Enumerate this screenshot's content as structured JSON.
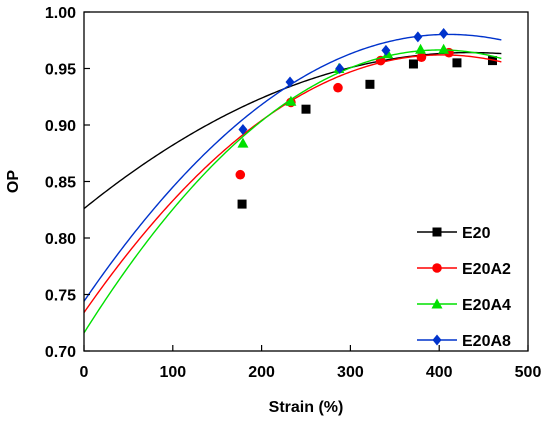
{
  "chart_data": {
    "type": "scatter",
    "xlabel": "Strain (%)",
    "ylabel": "OP",
    "xlim": [
      0,
      500
    ],
    "ylim": [
      0.7,
      1.0
    ],
    "x_ticks": [
      "0",
      "100",
      "200",
      "300",
      "400",
      "500"
    ],
    "y_ticks": [
      "0.70",
      "0.75",
      "0.80",
      "0.85",
      "0.90",
      "0.95",
      "1.00"
    ],
    "grid": false,
    "legend_position": "bottom-right",
    "series": [
      {
        "name": "E20",
        "color": "#000000",
        "marker": "square",
        "points": [
          [
            178,
            0.83
          ],
          [
            250,
            0.914
          ],
          [
            322,
            0.936
          ],
          [
            371,
            0.954
          ],
          [
            420,
            0.955
          ],
          [
            460,
            0.957
          ]
        ],
        "fit": {
          "a": -7.3e-07,
          "b": 0.000635,
          "c": 0.826
        }
      },
      {
        "name": "E20A2",
        "color": "#ff0000",
        "marker": "circle",
        "points": [
          [
            176,
            0.856
          ],
          [
            233,
            0.92
          ],
          [
            286,
            0.933
          ],
          [
            334,
            0.957
          ],
          [
            380,
            0.96
          ],
          [
            411,
            0.964
          ]
        ],
        "fit": {
          "a": -1.4e-06,
          "b": 0.00113,
          "c": 0.734
        }
      },
      {
        "name": "E20A4",
        "color": "#00e000",
        "marker": "triangle",
        "points": [
          [
            179,
            0.884
          ],
          [
            233,
            0.921
          ],
          [
            287,
            0.95
          ],
          [
            342,
            0.963
          ],
          [
            379,
            0.967
          ],
          [
            405,
            0.967
          ]
        ],
        "fit": {
          "a": -1.56e-06,
          "b": 0.00125,
          "c": 0.716
        }
      },
      {
        "name": "E20A8",
        "color": "#0033cc",
        "marker": "diamond",
        "points": [
          [
            179,
            0.896
          ],
          [
            232,
            0.938
          ],
          [
            288,
            0.95
          ],
          [
            340,
            0.966
          ],
          [
            376,
            0.978
          ],
          [
            405,
            0.981
          ]
        ],
        "fit": {
          "a": -1.4e-06,
          "b": 0.00115,
          "c": 0.744
        }
      }
    ]
  }
}
